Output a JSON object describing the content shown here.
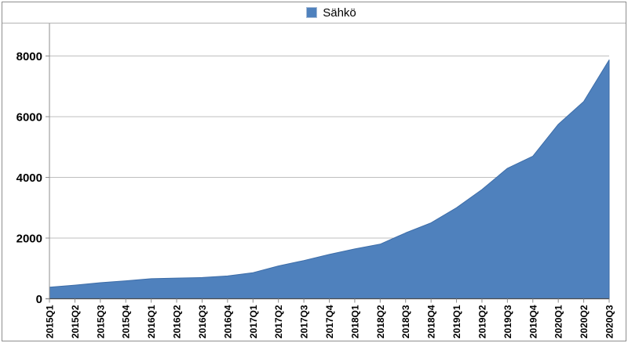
{
  "chart_data": {
    "type": "area",
    "title": "",
    "xlabel": "",
    "ylabel": "",
    "legend": {
      "label": "Sähkö",
      "position": "top",
      "swatch_color": "#4F81BD"
    },
    "categories": [
      "2015Q1",
      "2015Q2",
      "2015Q3",
      "2015Q4",
      "2016Q1",
      "2016Q2",
      "2016Q3",
      "2016Q4",
      "2017Q1",
      "2017Q2",
      "2017Q3",
      "2017Q4",
      "2018Q1",
      "2018Q2",
      "2018Q3",
      "2018Q4",
      "2019Q1",
      "2019Q2",
      "2019Q3",
      "2019Q4",
      "2020Q1",
      "2020Q2",
      "2020Q3"
    ],
    "series": [
      {
        "name": "Sähkö",
        "color": "#4F81BD",
        "values": [
          380,
          450,
          530,
          590,
          660,
          680,
          700,
          750,
          860,
          1080,
          1260,
          1460,
          1640,
          1800,
          2170,
          2500,
          3000,
          3600,
          4300,
          4700,
          5750,
          6500,
          7870
        ]
      }
    ],
    "ylim": [
      0,
      8000
    ],
    "yticks": [
      0,
      2000,
      4000,
      6000,
      8000
    ],
    "grid": "horizontal-major",
    "legend_position": "top-center",
    "x_tick_label_rotation_deg": 90
  },
  "colors": {
    "area_fill": "#4F81BD",
    "area_edge": "#3d6da8",
    "gridline": "#bfbfbf",
    "y_axis_line": "#8c8c8c",
    "x_axis_line": "#4d4d4d",
    "tick": "#8c8c8c",
    "chart_border": "#8e8e8e",
    "legend_separator": "#b3b3b3",
    "text": "#000000"
  }
}
